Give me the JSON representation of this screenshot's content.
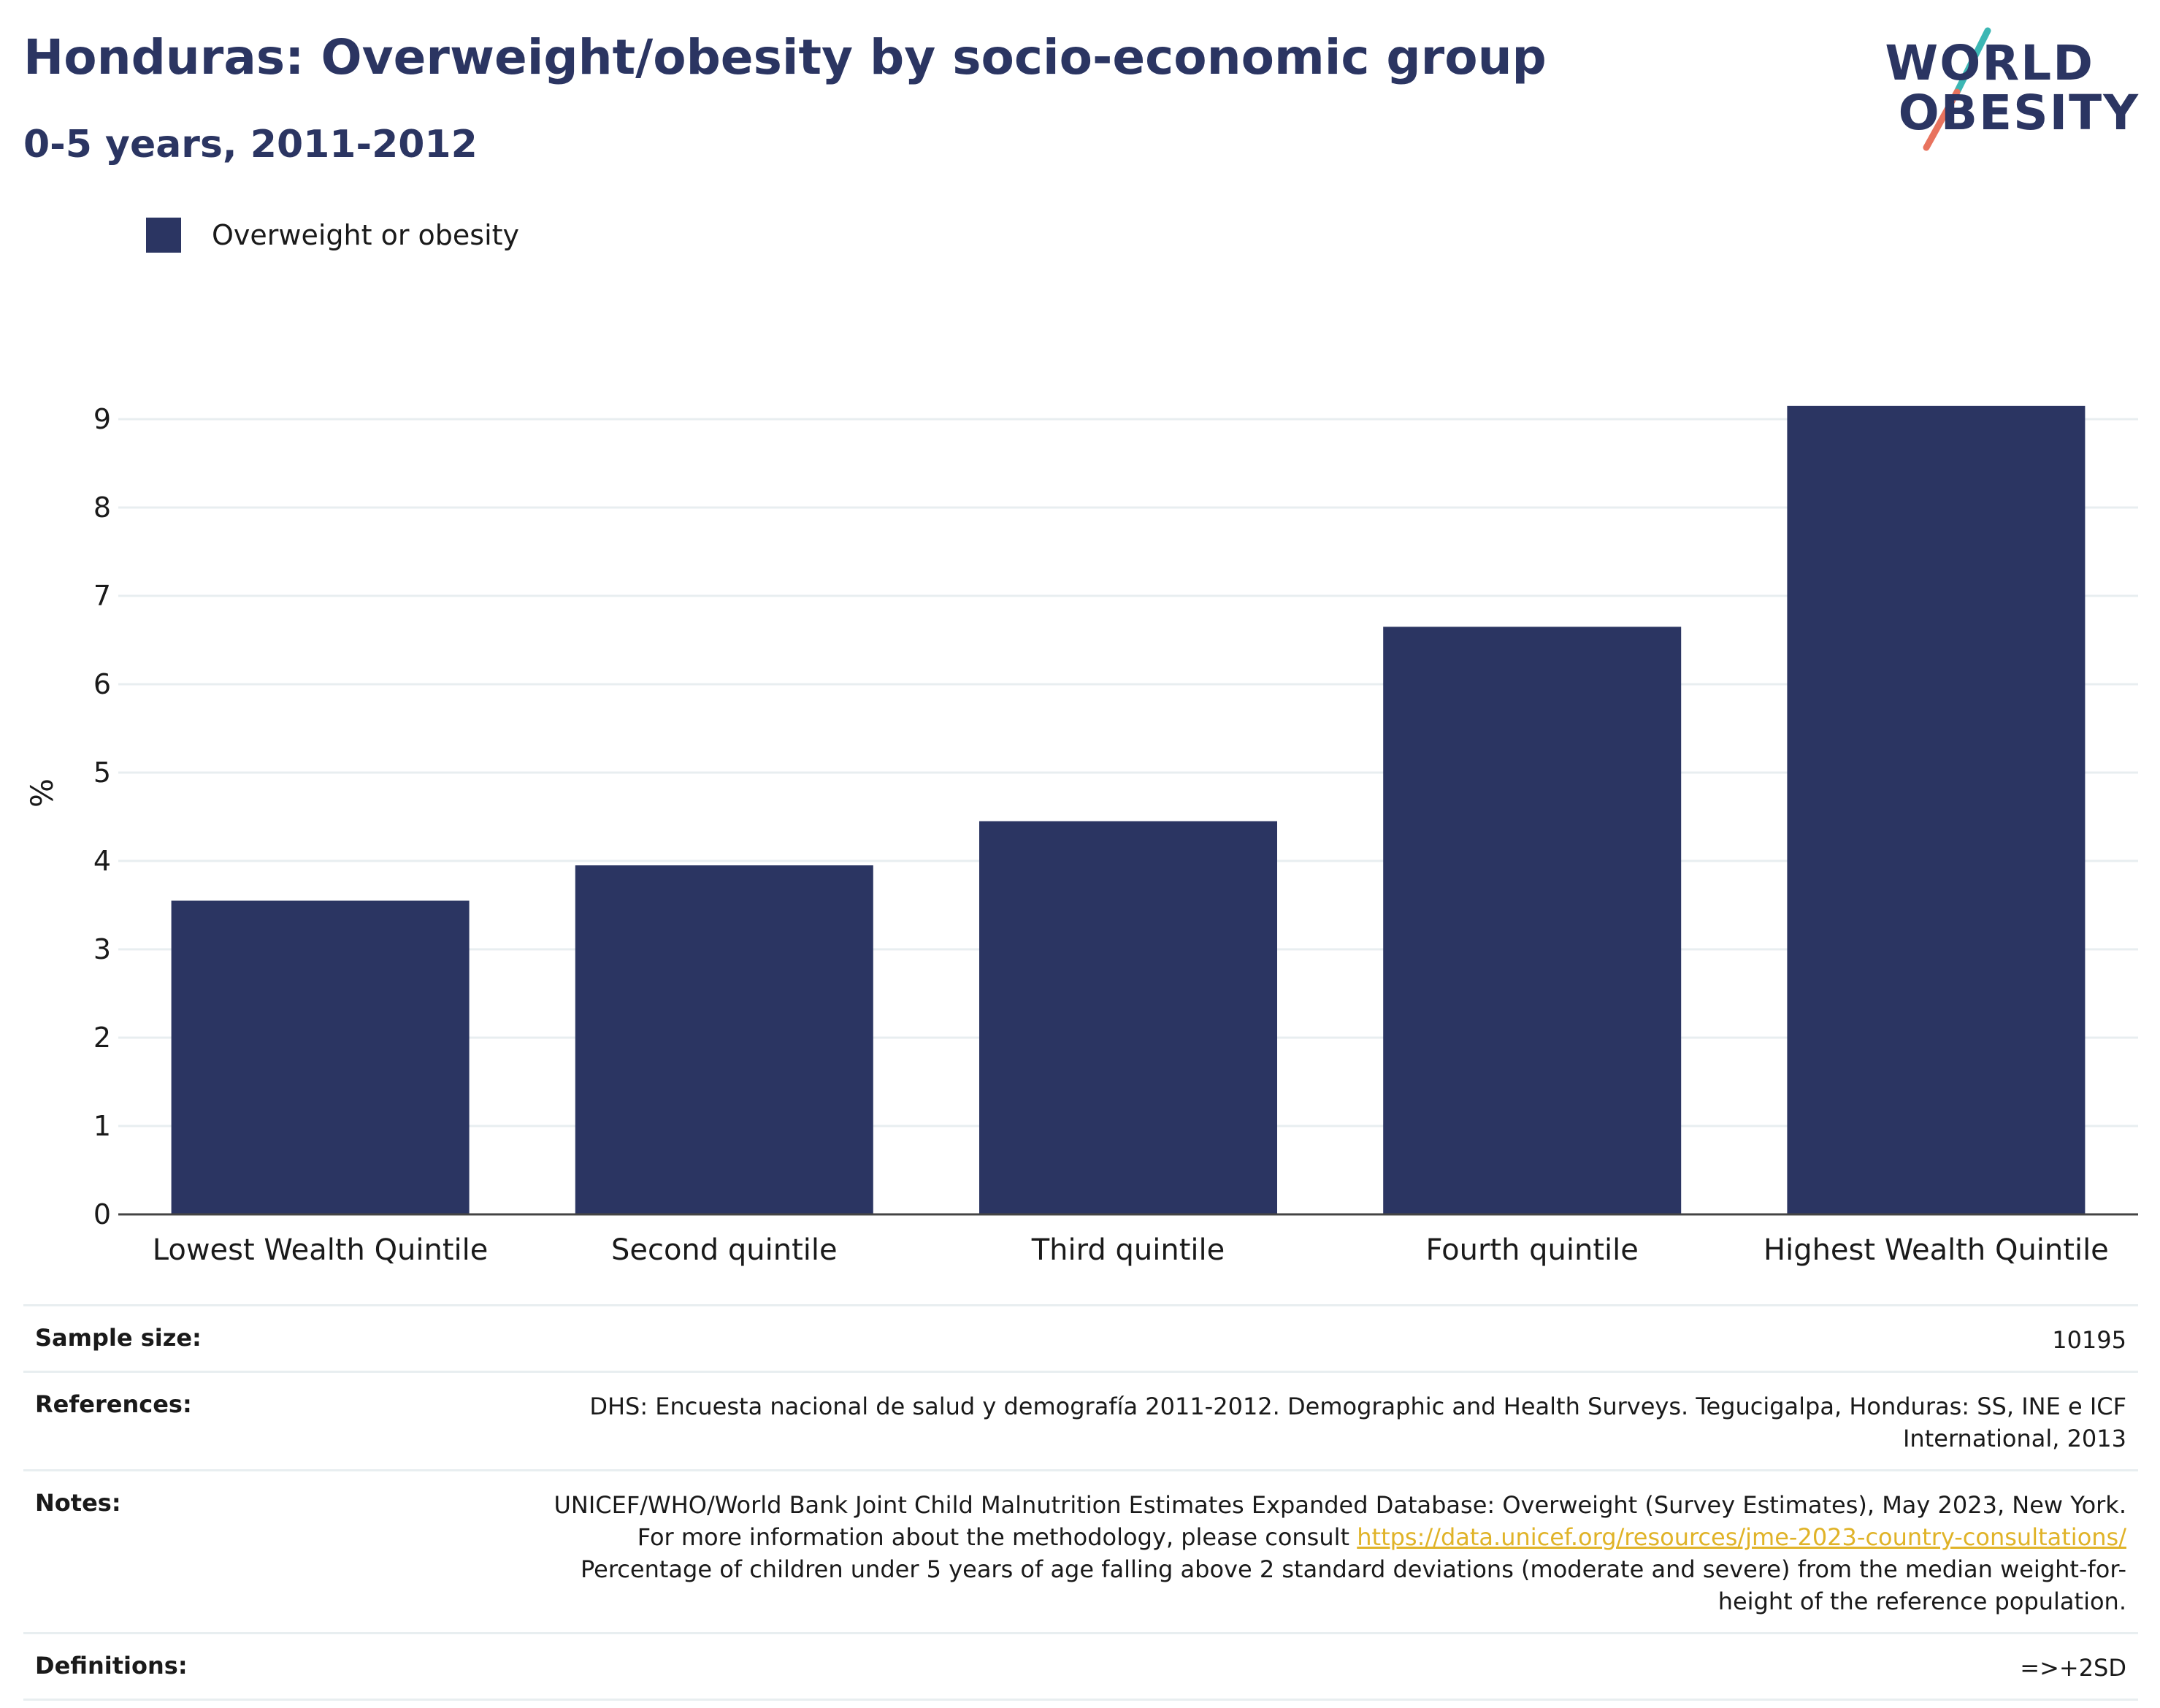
{
  "header": {
    "title": "Honduras: Overweight/obesity by socio-economic group",
    "subtitle": "0-5 years, 2011-2012"
  },
  "logo": {
    "line1": "WORLD",
    "line2": "OBESITY"
  },
  "colors": {
    "bar": "#2b3562",
    "title": "#2b3562",
    "grid": "#e8eef0",
    "link": "#e0b328",
    "logo_teal": "#3cb7b4",
    "logo_coral": "#e8735e"
  },
  "chart_data": {
    "type": "bar",
    "categories": [
      "Lowest Wealth Quintile",
      "Second quintile",
      "Third quintile",
      "Fourth quintile",
      "Highest Wealth Quintile"
    ],
    "series": [
      {
        "name": "Overweight or obesity",
        "values": [
          3.55,
          3.95,
          4.45,
          6.65,
          9.15
        ]
      }
    ],
    "ylabel": "%",
    "ylim": [
      0,
      9.5
    ],
    "yticks": [
      0,
      1,
      2,
      3,
      4,
      5,
      6,
      7,
      8,
      9
    ],
    "grid": true,
    "legend": "top-left"
  },
  "info": {
    "sample_size_label": "Sample size:",
    "sample_size": "10195",
    "references_label": "References:",
    "references": "DHS: Encuesta nacional de salud y demografía 2011-2012. Demographic and Health Surveys. Tegucigalpa, Honduras: SS, INE e ICF International, 2013",
    "notes_label": "Notes:",
    "notes_pre": "UNICEF/WHO/World Bank Joint Child Malnutrition Estimates Expanded Database: Overweight (Survey Estimates), May 2023, New York. For more information about the methodology, please consult ",
    "notes_link": "https://data.unicef.org/resources/jme-2023-country-consultations/",
    "notes_post": " Percentage of children under 5 years of age falling above 2 standard deviations (moderate and severe) from the median weight-for-height of the reference population.",
    "definitions_label": "Definitions:",
    "definitions": "=>+2SD"
  }
}
